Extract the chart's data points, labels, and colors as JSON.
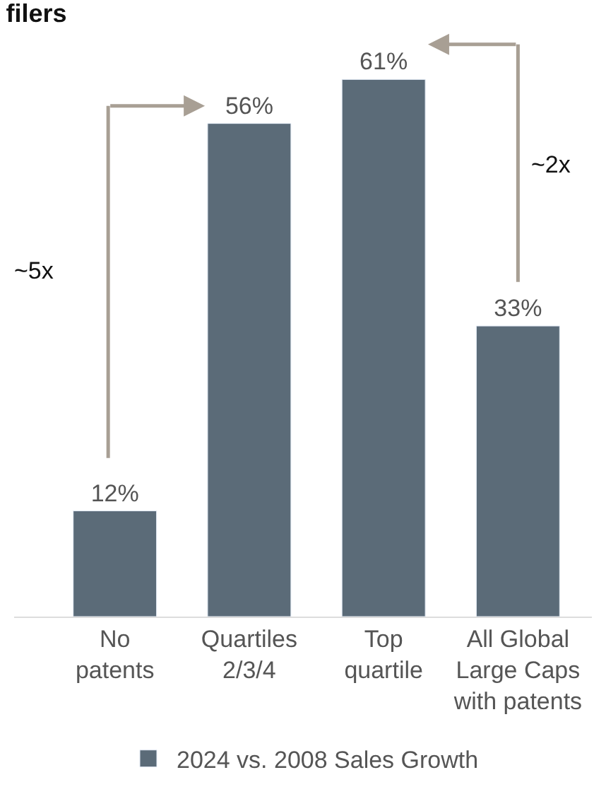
{
  "chart_data": {
    "type": "bar",
    "title": "filers",
    "categories": [
      "No\npatents",
      "Quartiles\n2/3/4",
      "Top\nquartile",
      "All Global\nLarge Caps\nwith patents"
    ],
    "series": [
      {
        "name": "2024 vs. 2008 Sales Growth",
        "color": "#5b6b78",
        "values": [
          12,
          56,
          61,
          33
        ],
        "value_labels": [
          "12%",
          "56%",
          "61%",
          "33%"
        ]
      }
    ],
    "annotations": [
      "~5x",
      "~2x"
    ],
    "legend": "bottom"
  }
}
